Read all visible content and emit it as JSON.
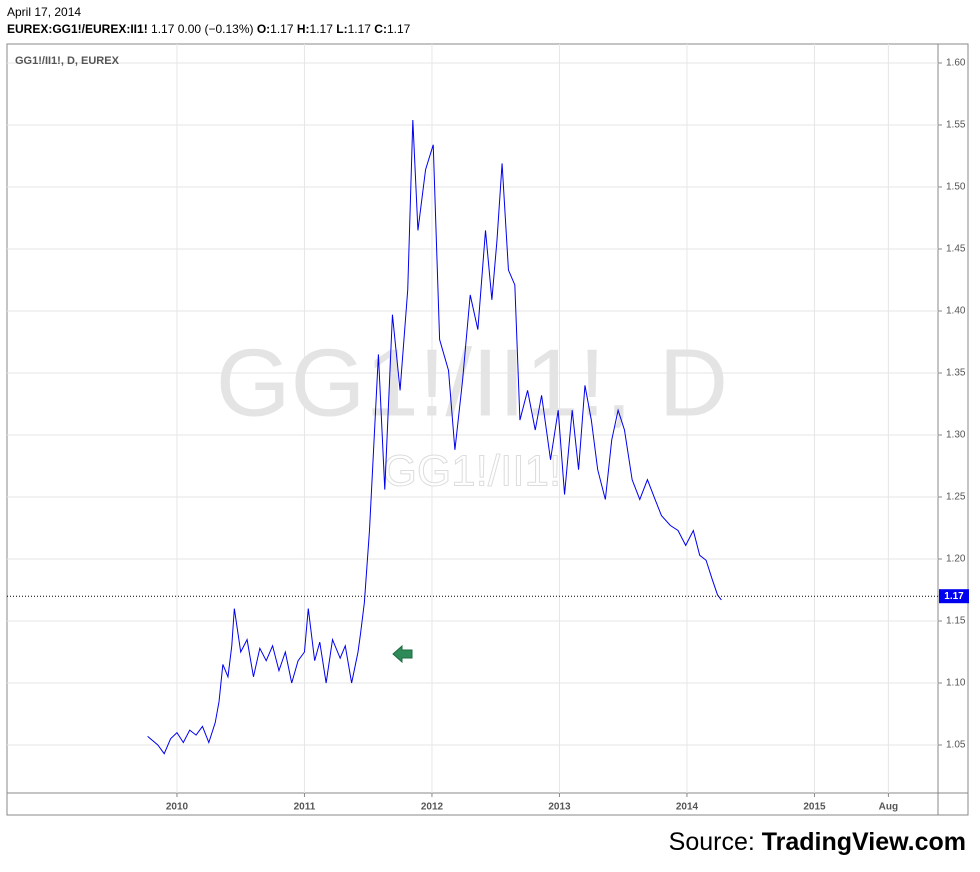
{
  "header": {
    "date": "April 17, 2014",
    "symbol": "EUREX:GG1!/EUREX:II1!",
    "last": "1.17",
    "change": "0.00",
    "change_pct": "(−0.13%)",
    "ohlc": [
      {
        "label": "O:",
        "value": "1.17"
      },
      {
        "label": "H:",
        "value": "1.17"
      },
      {
        "label": "L:",
        "value": "1.17"
      },
      {
        "label": "C:",
        "value": "1.17"
      }
    ]
  },
  "chart_data": {
    "type": "line",
    "legend": "GG1!/II1!, D, EUREX",
    "watermark": [
      "GG1!/II1!, D",
      "GG1!/II1!"
    ],
    "x": [
      2009.77,
      2009.85,
      2009.9,
      2009.95,
      2010.0,
      2010.05,
      2010.1,
      2010.15,
      2010.2,
      2010.25,
      2010.3,
      2010.33,
      2010.36,
      2010.4,
      2010.43,
      2010.45,
      2010.5,
      2010.55,
      2010.6,
      2010.65,
      2010.7,
      2010.75,
      2010.8,
      2010.85,
      2010.9,
      2010.95,
      2011.0,
      2011.03,
      2011.08,
      2011.12,
      2011.17,
      2011.22,
      2011.28,
      2011.32,
      2011.37,
      2011.42,
      2011.44,
      2011.47,
      2011.51,
      2011.58,
      2011.63,
      2011.69,
      2011.75,
      2011.81,
      2011.85,
      2011.89,
      2011.95,
      2012.01,
      2012.06,
      2012.13,
      2012.18,
      2012.24,
      2012.3,
      2012.36,
      2012.42,
      2012.47,
      2012.51,
      2012.55,
      2012.6,
      2012.65,
      2012.69,
      2012.75,
      2012.81,
      2012.86,
      2012.93,
      2012.99,
      2013.04,
      2013.1,
      2013.15,
      2013.2,
      2013.25,
      2013.3,
      2013.36,
      2013.41,
      2013.46,
      2013.51,
      2013.57,
      2013.63,
      2013.69,
      2013.75,
      2013.8,
      2013.87,
      2013.93,
      2013.99,
      2014.05,
      2014.1,
      2014.15,
      2014.2,
      2014.24,
      2014.27
    ],
    "series": [
      {
        "name": "GG1!/II1!, D, EUREX",
        "color": "#0000ee",
        "values": [
          1.057,
          1.05,
          1.043,
          1.055,
          1.06,
          1.052,
          1.062,
          1.058,
          1.065,
          1.052,
          1.068,
          1.085,
          1.115,
          1.105,
          1.13,
          1.16,
          1.125,
          1.135,
          1.105,
          1.128,
          1.118,
          1.13,
          1.11,
          1.125,
          1.1,
          1.118,
          1.125,
          1.16,
          1.118,
          1.133,
          1.1,
          1.135,
          1.12,
          1.13,
          1.1,
          1.125,
          1.14,
          1.165,
          1.223,
          1.365,
          1.256,
          1.397,
          1.336,
          1.417,
          1.554,
          1.465,
          1.514,
          1.534,
          1.377,
          1.352,
          1.288,
          1.344,
          1.413,
          1.385,
          1.465,
          1.409,
          1.457,
          1.519,
          1.433,
          1.421,
          1.312,
          1.336,
          1.304,
          1.332,
          1.28,
          1.32,
          1.252,
          1.32,
          1.272,
          1.34,
          1.312,
          1.272,
          1.248,
          1.296,
          1.32,
          1.304,
          1.264,
          1.248,
          1.264,
          1.248,
          1.235,
          1.227,
          1.223,
          1.211,
          1.223,
          1.203,
          1.199,
          1.183,
          1.171,
          1.167
        ]
      }
    ],
    "xlim": [
      2008.667,
      2015.969
    ],
    "xticks": [
      2010,
      2011,
      2012,
      2013,
      2014,
      2015,
      {
        "value": 2015.58,
        "label": "Aug"
      }
    ],
    "ylim": [
      1.0113,
      1.6153
    ],
    "yticks": [
      1.05,
      {
        "value": 1.1,
        "label": "1.10"
      },
      1.15,
      {
        "value": 1.2,
        "label": "1.20"
      },
      1.25,
      {
        "value": 1.3,
        "label": "1.30"
      },
      1.35,
      {
        "value": 1.4,
        "label": "1.40"
      },
      1.45,
      {
        "value": 1.5,
        "label": "1.50"
      },
      1.55,
      {
        "value": 1.6,
        "label": "1.60"
      }
    ],
    "grid": true,
    "last_price": 1.17,
    "last_price_color": "#0000ee"
  },
  "source": {
    "prefix": "Source:",
    "site": "TradingView.com"
  }
}
